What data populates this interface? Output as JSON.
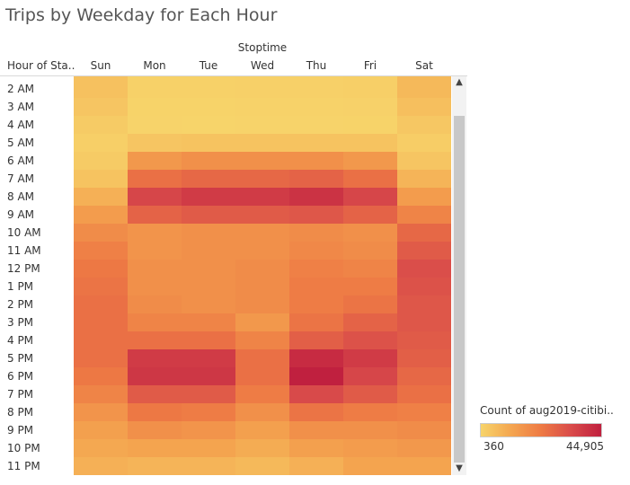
{
  "chart_data": {
    "type": "heatmap",
    "title": "Trips by Weekday for Each Hour",
    "column_group_label": "Stoptime",
    "row_header": "Hour of Sta..",
    "columns": [
      "Sun",
      "Mon",
      "Tue",
      "Wed",
      "Thu",
      "Fri",
      "Sat"
    ],
    "rows": [
      "2 AM",
      "3 AM",
      "4 AM",
      "5 AM",
      "6 AM",
      "7 AM",
      "8 AM",
      "9 AM",
      "10 AM",
      "11 AM",
      "12 PM",
      "1 PM",
      "2 PM",
      "3 PM",
      "4 PM",
      "5 PM",
      "6 PM",
      "7 PM",
      "8 PM",
      "9 PM",
      "10 PM",
      "11 PM"
    ],
    "values": [
      [
        5000,
        1200,
        1200,
        1300,
        1300,
        1600,
        7000
      ],
      [
        4000,
        700,
        700,
        800,
        800,
        1000,
        5500
      ],
      [
        2500,
        500,
        450,
        500,
        500,
        700,
        3500
      ],
      [
        1500,
        4000,
        4500,
        4500,
        4500,
        4500,
        2000
      ],
      [
        2500,
        15000,
        17000,
        17000,
        17000,
        15000,
        4000
      ],
      [
        4500,
        25000,
        27000,
        27000,
        28000,
        25000,
        8000
      ],
      [
        9000,
        35000,
        38000,
        38000,
        40000,
        35000,
        14000
      ],
      [
        14000,
        28000,
        30000,
        30000,
        31000,
        28000,
        20000
      ],
      [
        18000,
        16000,
        17000,
        17000,
        18000,
        17000,
        27000
      ],
      [
        21000,
        16000,
        17000,
        17000,
        19000,
        18000,
        30000
      ],
      [
        23000,
        17000,
        17000,
        18000,
        21000,
        20000,
        33000
      ],
      [
        24000,
        17000,
        17000,
        18000,
        22000,
        22000,
        32000
      ],
      [
        25000,
        18000,
        17000,
        18000,
        22000,
        24000,
        31000
      ],
      [
        25000,
        20000,
        20000,
        15000,
        24000,
        28000,
        31000
      ],
      [
        25000,
        25000,
        25000,
        20000,
        29000,
        32000,
        30000
      ],
      [
        25000,
        38000,
        38000,
        25000,
        42000,
        38000,
        29000
      ],
      [
        23000,
        39000,
        39000,
        25000,
        44905,
        35000,
        27000
      ],
      [
        20000,
        30000,
        30000,
        22000,
        34000,
        30000,
        25000
      ],
      [
        16000,
        23000,
        22000,
        17000,
        24000,
        22000,
        21000
      ],
      [
        13000,
        17000,
        16000,
        13000,
        17000,
        17000,
        18000
      ],
      [
        11000,
        12000,
        12000,
        10000,
        13000,
        14000,
        15000
      ],
      [
        9000,
        8000,
        8000,
        7000,
        9000,
        12000,
        12000
      ]
    ],
    "color_legend": {
      "title": "Count of aug2019-citibi..",
      "min": 360,
      "max": 44905,
      "min_label": "360",
      "max_label": "44,905",
      "colors": [
        "#f7d46a",
        "#f4a650",
        "#ee7a44",
        "#d94b4a",
        "#c0203f"
      ]
    }
  },
  "scrollbar": {
    "up_glyph": "▲",
    "down_glyph": "▼"
  }
}
